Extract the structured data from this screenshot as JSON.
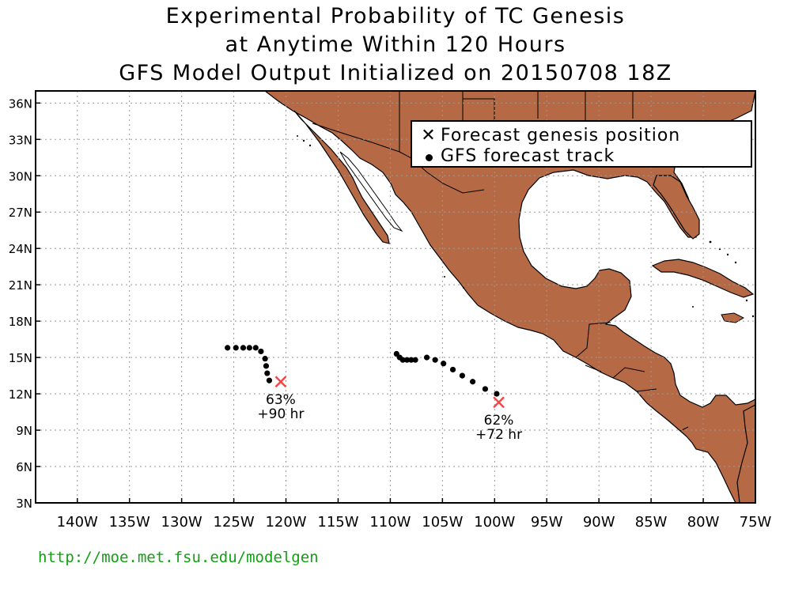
{
  "title": {
    "line1": "Experimental Probability of TC Genesis",
    "line2": "at Anytime Within 120 Hours",
    "line3": "GFS Model Output Initialized on 20150708 18Z"
  },
  "legend": {
    "genesis_label": "Forecast genesis position",
    "track_label": "GFS forecast track"
  },
  "axes": {
    "lat_labels": [
      "36N",
      "33N",
      "30N",
      "27N",
      "24N",
      "21N",
      "18N",
      "15N",
      "12N",
      "9N",
      "6N",
      "3N"
    ],
    "lat_values": [
      36,
      33,
      30,
      27,
      24,
      21,
      18,
      15,
      12,
      9,
      6,
      3
    ],
    "lon_labels": [
      "140W",
      "135W",
      "130W",
      "125W",
      "120W",
      "115W",
      "110W",
      "105W",
      "100W",
      "95W",
      "90W",
      "85W",
      "80W",
      "75W"
    ],
    "lon_values": [
      -140,
      -135,
      -130,
      -125,
      -120,
      -115,
      -110,
      -105,
      -100,
      -95,
      -90,
      -85,
      -80,
      -75
    ],
    "lon_range": [
      -144,
      -75
    ],
    "lat_range": [
      3,
      37
    ]
  },
  "colors": {
    "land": "#b56a45",
    "ocean": "#ffffff",
    "genesis_marker": "#ff4040",
    "track": "#000000",
    "url": "#11a011"
  },
  "systems": [
    {
      "genesis": {
        "lon": -120.5,
        "lat": 13.0
      },
      "probability": "63%",
      "lead_time": "+90 hr",
      "track": [
        [
          -125.6,
          15.8
        ],
        [
          -124.8,
          15.8
        ],
        [
          -124.1,
          15.8
        ],
        [
          -123.5,
          15.8
        ],
        [
          -122.9,
          15.8
        ],
        [
          -122.4,
          15.5
        ],
        [
          -122.0,
          14.9
        ],
        [
          -121.9,
          14.3
        ],
        [
          -121.8,
          13.7
        ],
        [
          -121.6,
          13.1
        ]
      ]
    },
    {
      "genesis": {
        "lon": -99.6,
        "lat": 11.3
      },
      "probability": "62%",
      "lead_time": "+72 hr",
      "track": [
        [
          -109.4,
          15.3
        ],
        [
          -109.1,
          15.0
        ],
        [
          -108.8,
          14.8
        ],
        [
          -108.4,
          14.8
        ],
        [
          -108.0,
          14.8
        ],
        [
          -107.6,
          14.8
        ],
        [
          -106.5,
          15.0
        ],
        [
          -105.7,
          14.8
        ],
        [
          -104.9,
          14.5
        ],
        [
          -104.0,
          14.0
        ],
        [
          -103.1,
          13.5
        ],
        [
          -102.1,
          13.0
        ],
        [
          -100.9,
          12.4
        ],
        [
          -99.8,
          12.0
        ]
      ]
    }
  ],
  "footer": {
    "url": "http://moe.met.fsu.edu/modelgen"
  }
}
